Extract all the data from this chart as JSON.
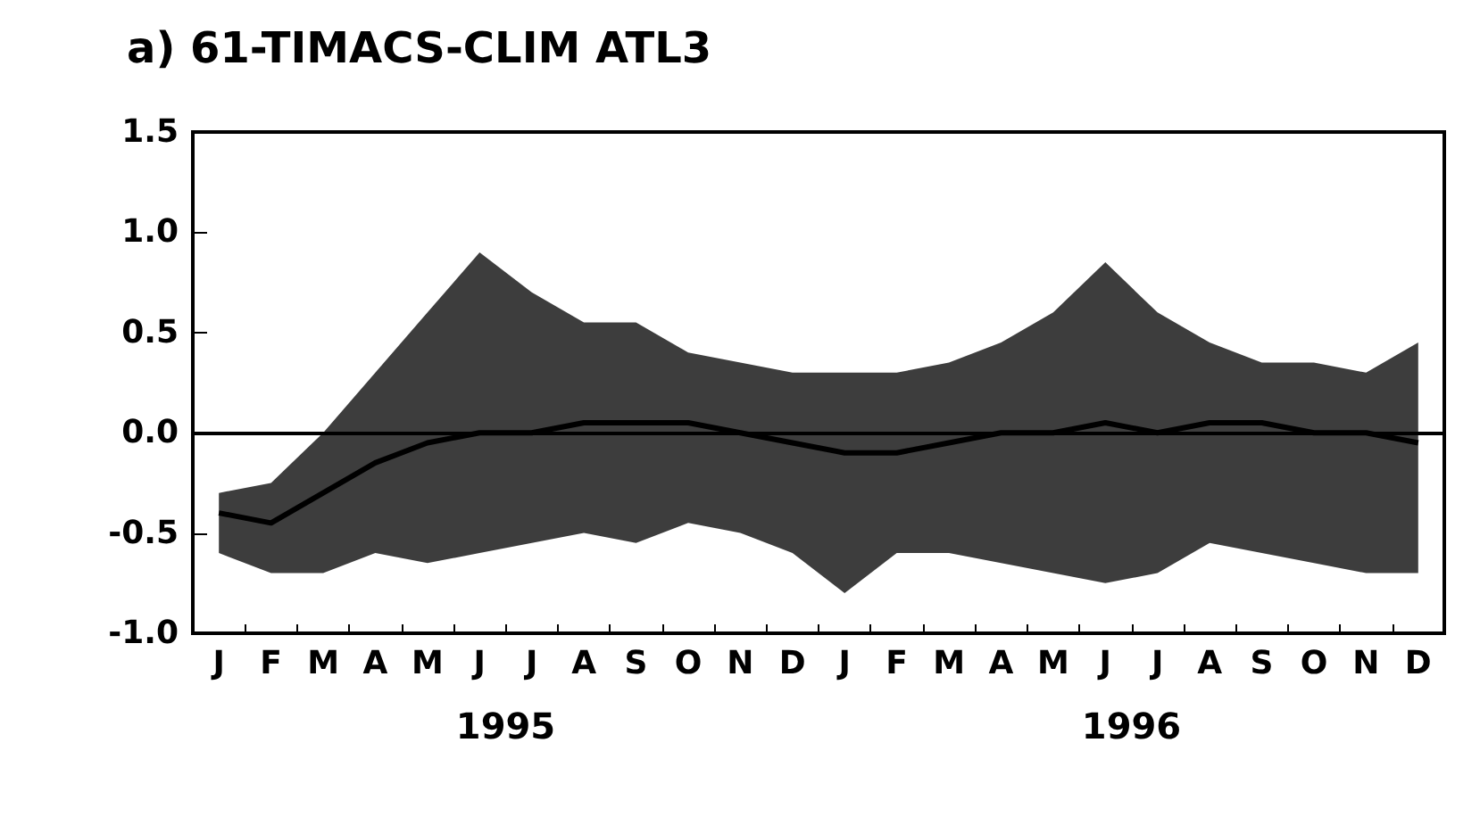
{
  "chart_data": {
    "type": "line",
    "title": "a) 61-TIMACS-CLIM ATL3",
    "categories": [
      "J",
      "F",
      "M",
      "A",
      "M",
      "J",
      "J",
      "A",
      "S",
      "O",
      "N",
      "D",
      "J",
      "F",
      "M",
      "A",
      "M",
      "J",
      "J",
      "A",
      "S",
      "O",
      "N",
      "D"
    ],
    "series": [
      {
        "color": "#000000",
        "values": [
          -0.4,
          -0.45,
          -0.3,
          -0.15,
          -0.05,
          0.0,
          0.0,
          0.05,
          0.05,
          0.05,
          0.0,
          -0.05,
          -0.1,
          -0.1,
          -0.05,
          0.0,
          0.0,
          0.05,
          0.0,
          0.05,
          0.05,
          0.0,
          0.0,
          -0.05
        ],
        "lower": [
          -0.6,
          -0.7,
          -0.7,
          -0.6,
          -0.65,
          -0.6,
          -0.55,
          -0.5,
          -0.55,
          -0.45,
          -0.5,
          -0.6,
          -0.8,
          -0.6,
          -0.6,
          -0.65,
          -0.7,
          -0.75,
          -0.7,
          -0.55,
          -0.6,
          -0.65,
          -0.7,
          -0.7
        ],
        "upper": [
          -0.3,
          -0.25,
          0.0,
          0.3,
          0.6,
          0.9,
          0.7,
          0.55,
          0.55,
          0.4,
          0.35,
          0.3,
          0.3,
          0.3,
          0.35,
          0.45,
          0.6,
          0.85,
          0.6,
          0.45,
          0.35,
          0.35,
          0.3,
          0.45
        ]
      }
    ],
    "ylim": [
      -1.0,
      1.5
    ],
    "yticks": [
      {
        "value": -1.0,
        "label": "-1.0"
      },
      {
        "value": -0.5,
        "label": "-0.5"
      },
      {
        "value": 0,
        "label": "0.0"
      },
      {
        "value": 0.5,
        "label": "0.5"
      },
      {
        "value": 1.0,
        "label": "1.0"
      },
      {
        "value": 1.5,
        "label": "1.5"
      }
    ],
    "ref_lines": [
      {
        "axis": "y",
        "value": 0,
        "color": "#000000"
      }
    ],
    "annotations": [
      "1995",
      "1996"
    ],
    "grid": false,
    "marker": "none",
    "line_style": "solid"
  }
}
